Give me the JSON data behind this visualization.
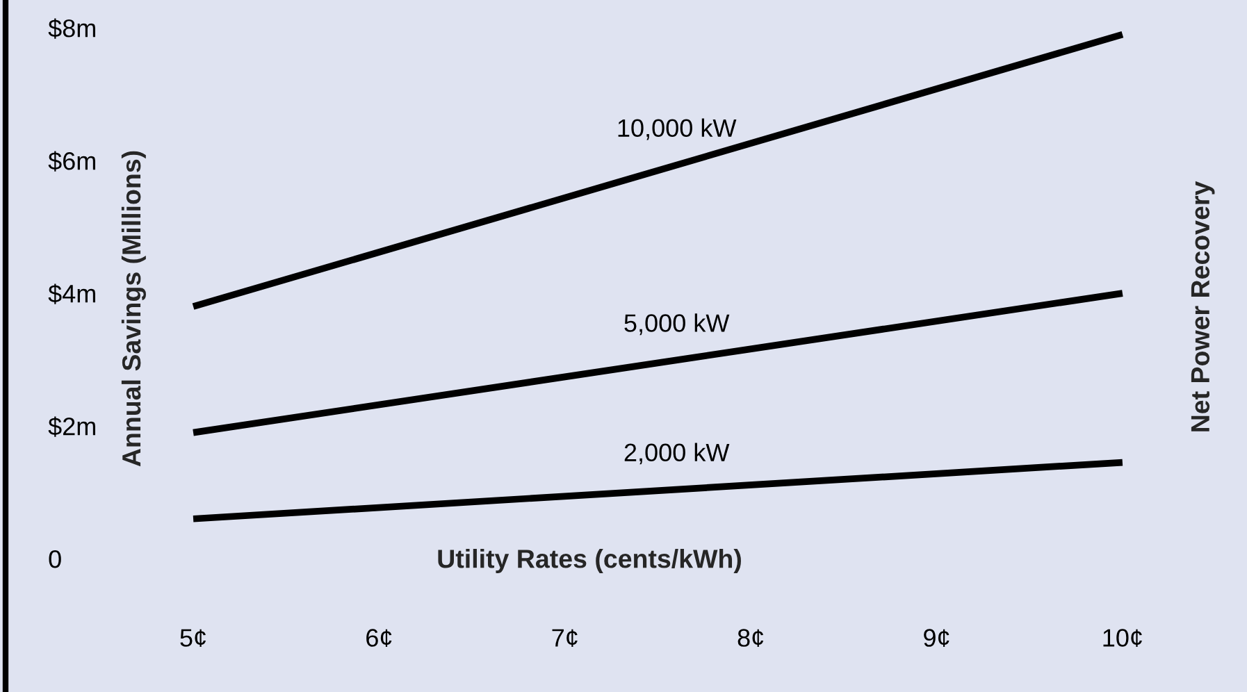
{
  "chart_data": {
    "type": "line",
    "xlabel": "Utility Rates (cents/kWh)",
    "ylabel": "Annual Savings (Millions)",
    "legend_title": "Net Power Recovery",
    "x": [
      5,
      10
    ],
    "series": [
      {
        "name": "10,000 kW",
        "color": "#000000",
        "values": [
          3.8,
          7.9
        ]
      },
      {
        "name": "5,000 kW",
        "color": "#000000",
        "values": [
          1.9,
          4.0
        ]
      },
      {
        "name": "2,000 kW",
        "color": "#000000",
        "values": [
          0.6,
          1.45
        ]
      }
    ],
    "xlim": [
      3.99,
      10.67
    ],
    "ylim": [
      -2.01,
      8.42
    ],
    "xticks": [
      {
        "value": 5,
        "label": "5¢"
      },
      {
        "value": 6,
        "label": "6¢"
      },
      {
        "value": 7,
        "label": "7¢"
      },
      {
        "value": 8,
        "label": "8¢"
      },
      {
        "value": 9,
        "label": "9¢"
      },
      {
        "value": 10,
        "label": "10¢"
      }
    ],
    "yticks": [
      0,
      {
        "value": 2,
        "label": "$2m"
      },
      {
        "value": 4,
        "label": "$4m"
      },
      {
        "value": 6,
        "label": "$6m"
      },
      {
        "value": 8,
        "label": "$8m"
      }
    ],
    "grid": false,
    "legend": false,
    "marker": "none",
    "line_style": "solid"
  }
}
